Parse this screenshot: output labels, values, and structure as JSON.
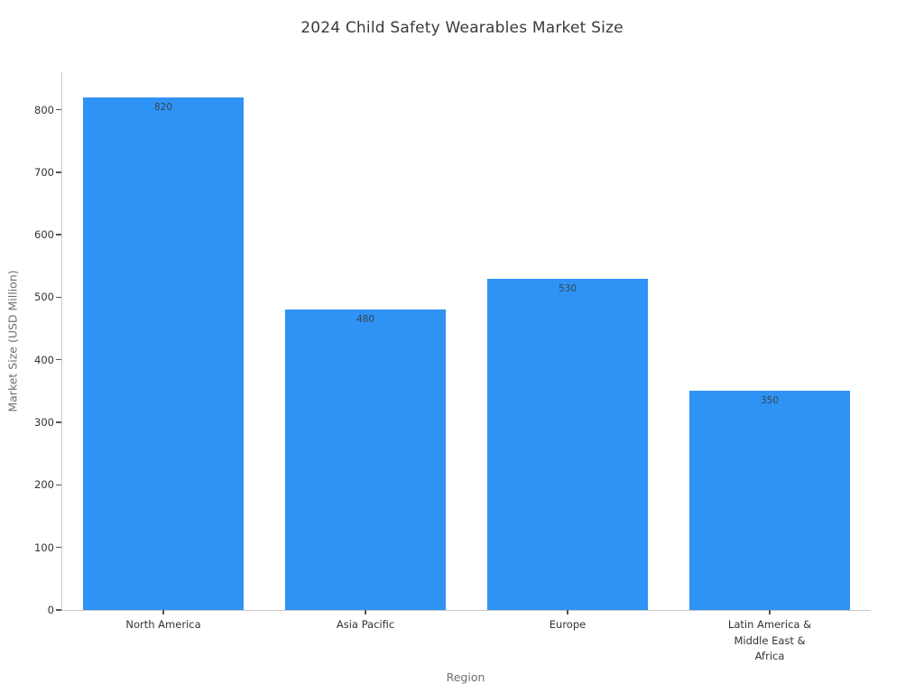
{
  "chart_data": {
    "type": "bar",
    "title": "2024 Child Safety Wearables Market Size",
    "categories": [
      "North America",
      "Asia Pacific",
      "Europe",
      "Latin America &\nMiddle East &\nAfrica"
    ],
    "values": [
      820,
      480,
      530,
      350
    ],
    "xlabel": "Region",
    "ylabel": "Market Size (USD Million)",
    "ylim": [
      0,
      860
    ],
    "yticks": [
      0,
      100,
      200,
      300,
      400,
      500,
      600,
      700,
      800
    ],
    "grid": false,
    "legend": false,
    "colors": {
      "bar": "#2E93F5",
      "value_label": "#37474f",
      "tick_label": "#333333",
      "axis_title": "#6e6e6e",
      "spine": "#c9c9c9",
      "title": "#3a3a3a",
      "background": "#ffffff"
    }
  }
}
